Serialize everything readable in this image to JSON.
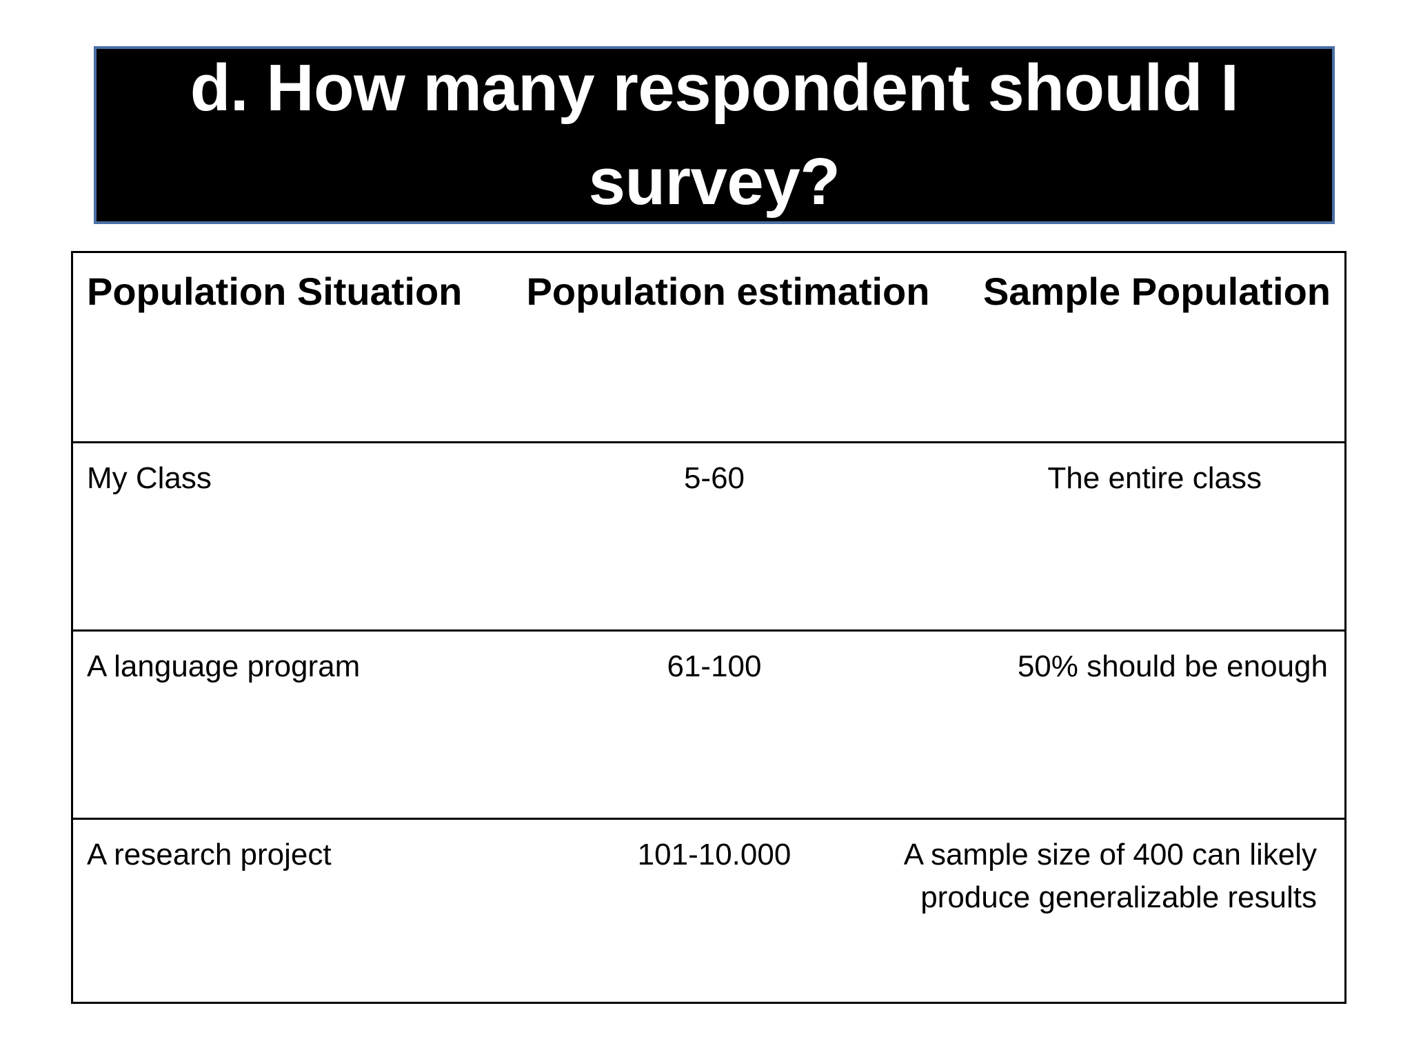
{
  "title": "d. How many respondent should I survey?",
  "table": {
    "headers": [
      "Population Situation",
      "Population estimation",
      "Sample Population"
    ],
    "rows": [
      [
        "My Class",
        "5-60",
        "The entire class"
      ],
      [
        "A language program",
        "61-100",
        "50% should be enough"
      ],
      [
        "A research project",
        "101-10.000",
        "A sample size of 400 can likely produce generalizable results"
      ]
    ]
  }
}
